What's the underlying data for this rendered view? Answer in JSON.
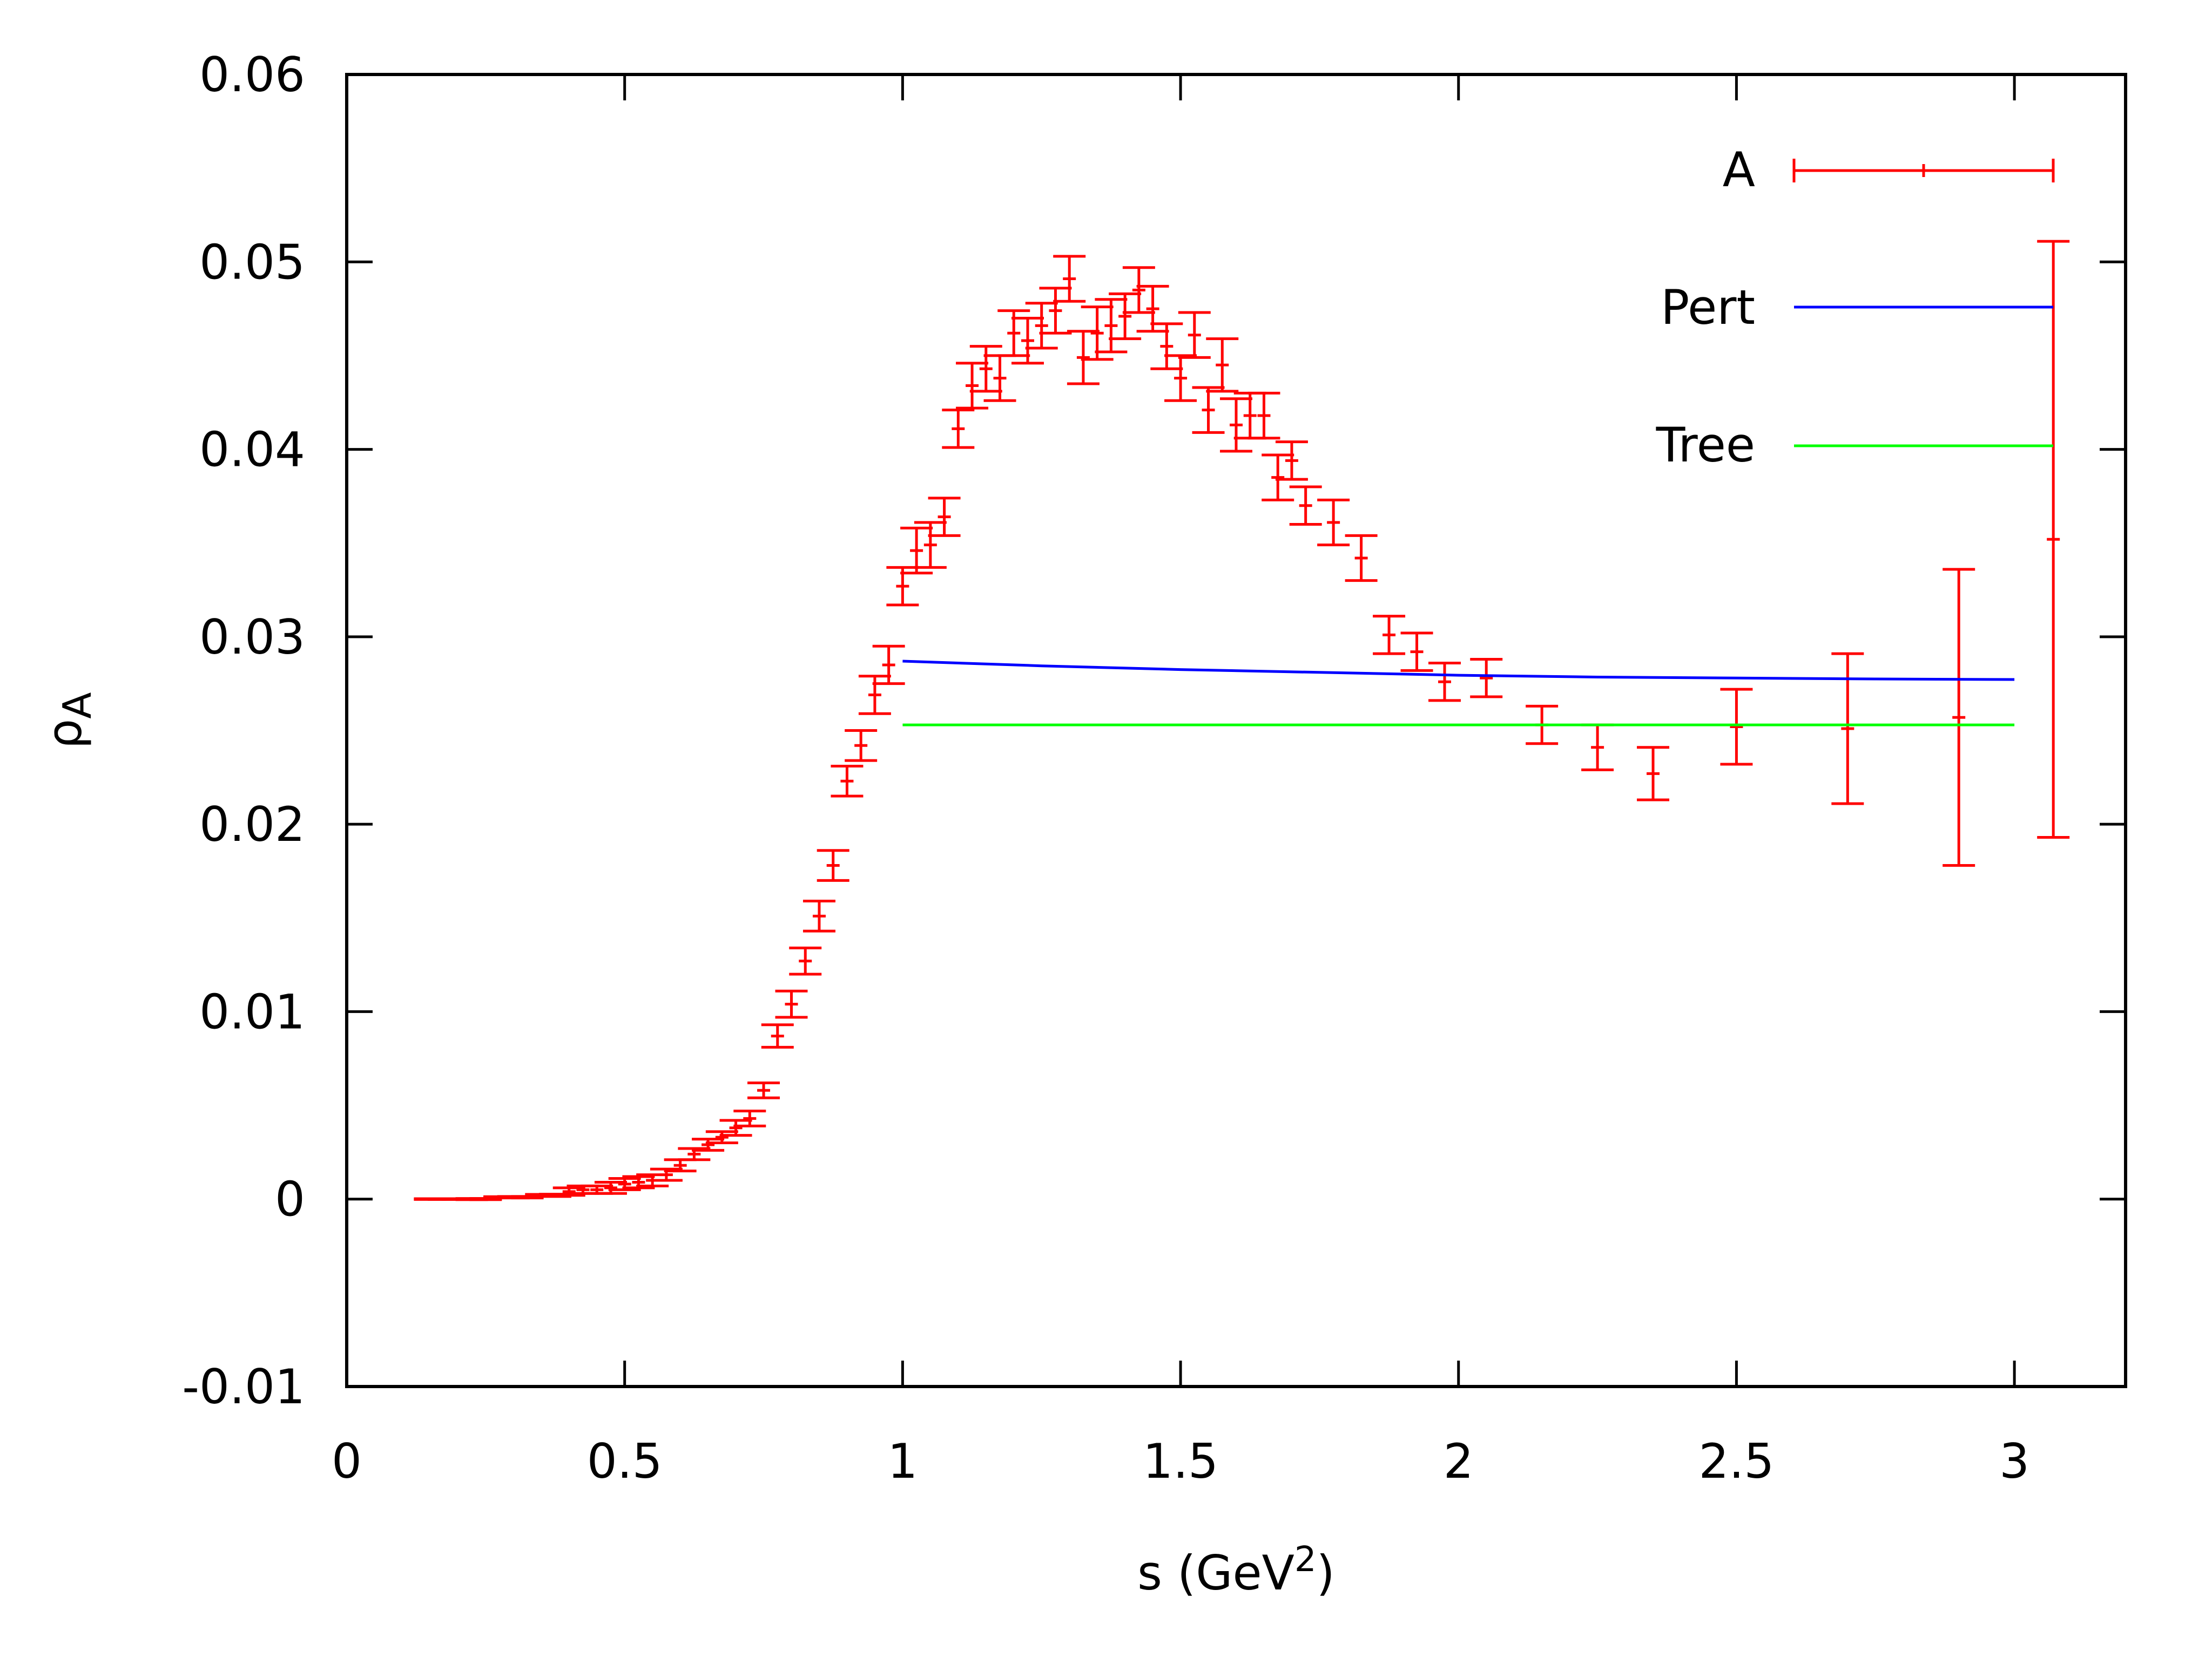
{
  "chart_data": {
    "type": "scatter",
    "title": "",
    "xlabel": {
      "base": "s (GeV",
      "sup": "2",
      "tail": ")"
    },
    "ylabel": {
      "base": "ρ",
      "sub": "A"
    },
    "xlim": [
      0,
      3.2
    ],
    "ylim": [
      -0.01,
      0.06
    ],
    "xticks": [
      {
        "v": 0,
        "label": "0"
      },
      {
        "v": 0.5,
        "label": "0.5"
      },
      {
        "v": 1,
        "label": "1"
      },
      {
        "v": 1.5,
        "label": "1.5"
      },
      {
        "v": 2,
        "label": "2"
      },
      {
        "v": 2.5,
        "label": "2.5"
      },
      {
        "v": 3,
        "label": "3"
      }
    ],
    "yticks": [
      {
        "v": -0.01,
        "label": "-0.01"
      },
      {
        "v": 0,
        "label": "0"
      },
      {
        "v": 0.01,
        "label": "0.01"
      },
      {
        "v": 0.02,
        "label": "0.02"
      },
      {
        "v": 0.03,
        "label": "0.03"
      },
      {
        "v": 0.04,
        "label": "0.04"
      },
      {
        "v": 0.05,
        "label": "0.05"
      },
      {
        "v": 0.06,
        "label": "0.06"
      }
    ],
    "legend_position": "top-right",
    "series": [
      {
        "name": "A",
        "kind": "errorbars",
        "color": "#ff0000",
        "points": [
          [
            0.15,
            0.0,
            2e-05
          ],
          [
            0.175,
            0.0,
            2e-05
          ],
          [
            0.2,
            0.0,
            2e-05
          ],
          [
            0.225,
            0.0,
            3e-05
          ],
          [
            0.25,
            0.0,
            3e-05
          ],
          [
            0.275,
            0.0001,
            3e-05
          ],
          [
            0.3,
            0.0001,
            4e-05
          ],
          [
            0.325,
            0.0001,
            4e-05
          ],
          [
            0.35,
            0.0002,
            5e-05
          ],
          [
            0.375,
            0.0002,
            6e-05
          ],
          [
            0.4,
            0.0004,
            0.0002
          ],
          [
            0.425,
            0.0005,
            0.0002
          ],
          [
            0.45,
            0.0005,
            0.0002
          ],
          [
            0.475,
            0.0006,
            0.0003
          ],
          [
            0.5,
            0.0008,
            0.0003
          ],
          [
            0.525,
            0.0009,
            0.0003
          ],
          [
            0.55,
            0.001,
            0.0003
          ],
          [
            0.575,
            0.0013,
            0.0003
          ],
          [
            0.6,
            0.0018,
            0.0003
          ],
          [
            0.625,
            0.0024,
            0.0003
          ],
          [
            0.65,
            0.0029,
            0.0003
          ],
          [
            0.675,
            0.0033,
            0.0003
          ],
          [
            0.7,
            0.0038,
            0.0004
          ],
          [
            0.725,
            0.0043,
            0.0004
          ],
          [
            0.75,
            0.0058,
            0.0004
          ],
          [
            0.775,
            0.0087,
            0.0006
          ],
          [
            0.8,
            0.0104,
            0.0007
          ],
          [
            0.825,
            0.0127,
            0.0007
          ],
          [
            0.85,
            0.0151,
            0.0008
          ],
          [
            0.875,
            0.0178,
            0.0008
          ],
          [
            0.9,
            0.0223,
            0.0008
          ],
          [
            0.925,
            0.0242,
            0.0008
          ],
          [
            0.95,
            0.0269,
            0.001
          ],
          [
            0.975,
            0.0285,
            0.001
          ],
          [
            1.0,
            0.0327,
            0.001
          ],
          [
            1.025,
            0.0346,
            0.0012
          ],
          [
            1.05,
            0.0349,
            0.0012
          ],
          [
            1.075,
            0.0364,
            0.001
          ],
          [
            1.1,
            0.0411,
            0.001
          ],
          [
            1.125,
            0.0434,
            0.0012
          ],
          [
            1.15,
            0.0443,
            0.0012
          ],
          [
            1.175,
            0.0438,
            0.0012
          ],
          [
            1.2,
            0.0462,
            0.0012
          ],
          [
            1.225,
            0.0458,
            0.0012
          ],
          [
            1.25,
            0.0466,
            0.0012
          ],
          [
            1.275,
            0.0474,
            0.0012
          ],
          [
            1.3,
            0.0491,
            0.0012
          ],
          [
            1.325,
            0.0449,
            0.0014
          ],
          [
            1.35,
            0.0462,
            0.0014
          ],
          [
            1.375,
            0.0466,
            0.0014
          ],
          [
            1.4,
            0.0471,
            0.0012
          ],
          [
            1.425,
            0.0485,
            0.0012
          ],
          [
            1.45,
            0.0475,
            0.0012
          ],
          [
            1.475,
            0.0455,
            0.0012
          ],
          [
            1.5,
            0.0438,
            0.0012
          ],
          [
            1.525,
            0.0461,
            0.0012
          ],
          [
            1.55,
            0.0421,
            0.0012
          ],
          [
            1.575,
            0.0445,
            0.0014
          ],
          [
            1.6,
            0.0413,
            0.0014
          ],
          [
            1.625,
            0.0418,
            0.0012
          ],
          [
            1.65,
            0.0418,
            0.0012
          ],
          [
            1.675,
            0.0385,
            0.0012
          ],
          [
            1.7,
            0.0394,
            0.001
          ],
          [
            1.725,
            0.037,
            0.001
          ],
          [
            1.775,
            0.0361,
            0.0012
          ],
          [
            1.825,
            0.0342,
            0.0012
          ],
          [
            1.875,
            0.0301,
            0.001
          ],
          [
            1.925,
            0.0292,
            0.001
          ],
          [
            1.975,
            0.0276,
            0.001
          ],
          [
            2.05,
            0.0278,
            0.001
          ],
          [
            2.15,
            0.0253,
            0.001
          ],
          [
            2.25,
            0.0241,
            0.0012
          ],
          [
            2.35,
            0.0227,
            0.0014
          ],
          [
            2.5,
            0.0252,
            0.002
          ],
          [
            2.7,
            0.0251,
            0.004
          ],
          [
            2.9,
            0.0257,
            0.0079
          ],
          [
            3.07,
            0.0352,
            0.0159
          ]
        ]
      },
      {
        "name": "Pert",
        "kind": "line",
        "color": "#0000ff",
        "points": [
          [
            1.0,
            0.0287
          ],
          [
            1.25,
            0.02845
          ],
          [
            1.5,
            0.02825
          ],
          [
            1.75,
            0.0281
          ],
          [
            2.0,
            0.02795
          ],
          [
            2.25,
            0.02785
          ],
          [
            2.5,
            0.0278
          ],
          [
            2.75,
            0.02775
          ],
          [
            3.0,
            0.02772
          ]
        ]
      },
      {
        "name": "Tree",
        "kind": "line",
        "color": "#00ff00",
        "points": [
          [
            1.0,
            0.0253
          ],
          [
            3.0,
            0.0253
          ]
        ]
      }
    ]
  }
}
